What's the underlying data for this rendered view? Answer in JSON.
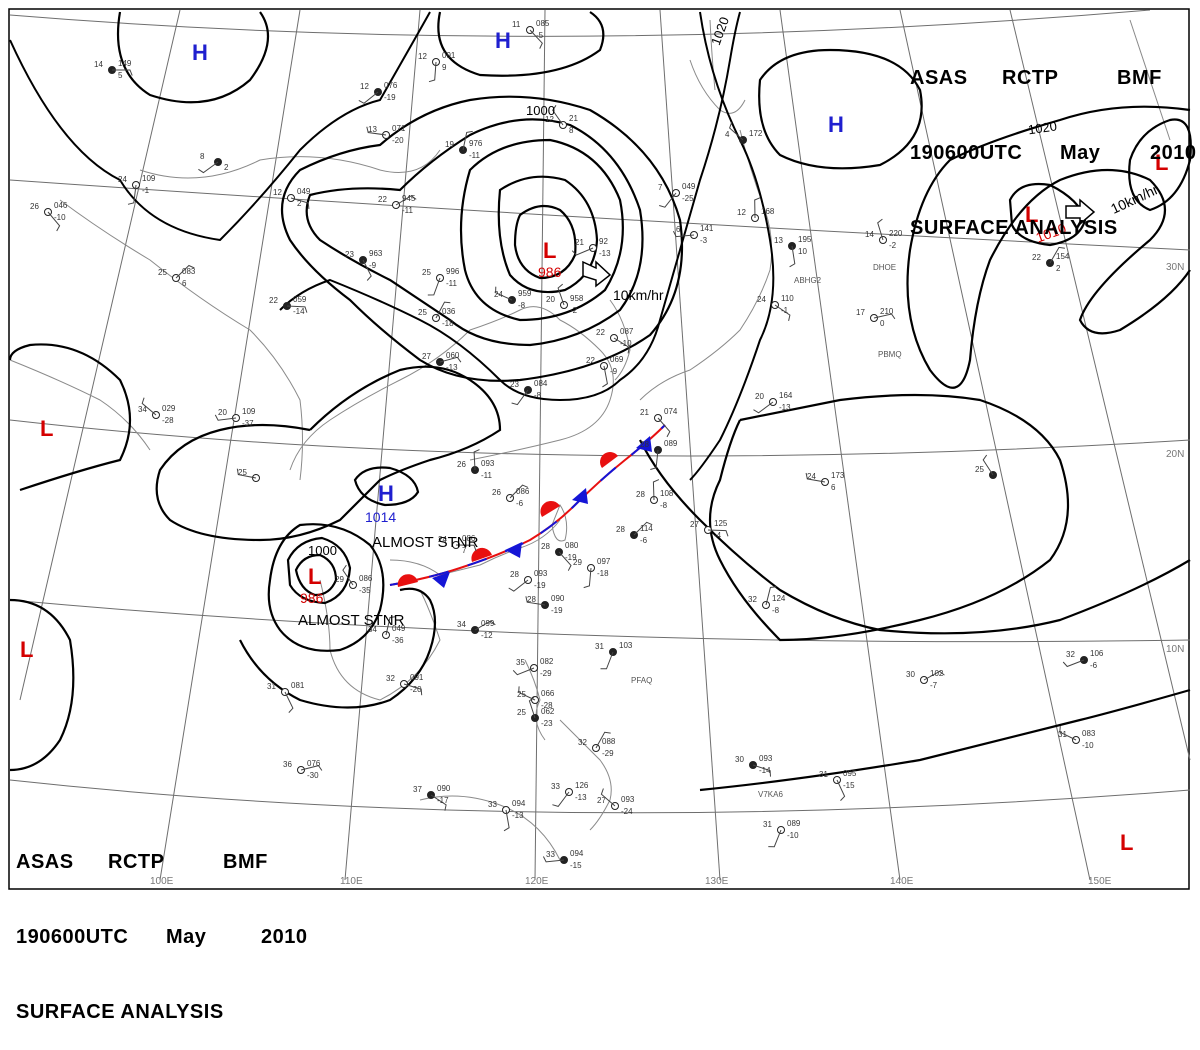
{
  "header": {
    "product": "ASAS",
    "issuer": "RCTP",
    "station": "BMF",
    "valid_time": "190600UTC",
    "month": "May",
    "year": "2010",
    "chart_type": "SURFACE ANALYSIS"
  },
  "pressure_centers": [
    {
      "type": "H",
      "value": ""
    },
    {
      "type": "H",
      "value": ""
    },
    {
      "type": "H",
      "value": ""
    },
    {
      "type": "H",
      "value": "1014"
    },
    {
      "type": "L",
      "value": "986"
    },
    {
      "type": "L",
      "value": "986"
    },
    {
      "type": "L",
      "value": "1010"
    },
    {
      "type": "L",
      "value": ""
    },
    {
      "type": "L",
      "value": ""
    },
    {
      "type": "L",
      "value": ""
    }
  ],
  "isobar_labels": [
    "1000",
    "1000",
    "1020",
    "1020"
  ],
  "motion_labels": [
    "10km/hr",
    "10km/hr"
  ],
  "front_notes": [
    "ALMOST STNR",
    "ALMOST STNR"
  ],
  "station_ids": [
    "ABHG2",
    "DHOE",
    "PBMQ",
    "PFAQ",
    "V7KA6"
  ],
  "lon_labels": [
    "100E",
    "110E",
    "120E",
    "130E",
    "140E",
    "150E"
  ],
  "lat_labels": [
    "30N",
    "20N",
    "10N"
  ],
  "station_plots": [
    {
      "t": "14",
      "p": "149",
      "d": "5"
    },
    {
      "t": "11",
      "p": "085",
      "d": "-5"
    },
    {
      "t": "12",
      "p": "091",
      "d": "9"
    },
    {
      "t": "12",
      "p": "076",
      "d": "-19"
    },
    {
      "t": "13",
      "p": "071",
      "d": "-20"
    },
    {
      "t": "12",
      "p": "21",
      "d": "8"
    },
    {
      "t": "19",
      "p": "976",
      "d": "-11"
    },
    {
      "t": "22",
      "p": "945",
      "d": "-11"
    },
    {
      "t": "12",
      "p": "049",
      "d": "2"
    },
    {
      "t": "23",
      "p": "963",
      "d": "-9"
    },
    {
      "t": "25",
      "p": "996",
      "d": "-11"
    },
    {
      "t": "21",
      "p": "92",
      "d": "-13"
    },
    {
      "t": "24",
      "p": "959",
      "d": "-8"
    },
    {
      "t": "20",
      "p": "958",
      "d": "-2"
    },
    {
      "t": "25",
      "p": "036",
      "d": "-18"
    },
    {
      "t": "27",
      "p": "060",
      "d": "-13"
    },
    {
      "t": "22",
      "p": "087",
      "d": "-10"
    },
    {
      "t": "22",
      "p": "069",
      "d": "-9"
    },
    {
      "t": "23",
      "p": "084",
      "d": "-8"
    },
    {
      "t": "20",
      "p": "109",
      "d": "-37"
    },
    {
      "t": "34",
      "p": "029",
      "d": "-28"
    },
    {
      "t": "26",
      "p": "093",
      "d": "-11"
    },
    {
      "t": "26",
      "p": "086",
      "d": "-6"
    },
    {
      "t": "24",
      "p": "086",
      "d": "7"
    },
    {
      "t": "28",
      "p": "080",
      "d": "-19"
    },
    {
      "t": "29",
      "p": "097",
      "d": "-18"
    },
    {
      "t": "28",
      "p": "093",
      "d": "-19"
    },
    {
      "t": "28",
      "p": "090",
      "d": "-19"
    },
    {
      "t": "29",
      "p": "086",
      "d": "-35"
    },
    {
      "t": "34",
      "p": "049",
      "d": "-36"
    },
    {
      "t": "34",
      "p": "099",
      "d": "-12"
    },
    {
      "t": "32",
      "p": "091",
      "d": "-20"
    },
    {
      "t": "31",
      "p": "081",
      "d": ""
    },
    {
      "t": "31",
      "p": "103",
      "d": ""
    },
    {
      "t": "35",
      "p": "082",
      "d": "-29"
    },
    {
      "t": "25",
      "p": "066",
      "d": "-28"
    },
    {
      "t": "25",
      "p": "062",
      "d": "-23"
    },
    {
      "t": "32",
      "p": "088",
      "d": "-29"
    },
    {
      "t": "36",
      "p": "076",
      "d": "-30"
    },
    {
      "t": "37",
      "p": "090",
      "d": "-17"
    },
    {
      "t": "33",
      "p": "094",
      "d": "-13"
    },
    {
      "t": "33",
      "p": "126",
      "d": "-13"
    },
    {
      "t": "33",
      "p": "094",
      "d": "-15"
    },
    {
      "t": "27",
      "p": "093",
      "d": "-24"
    },
    {
      "t": "28",
      "p": "108",
      "d": "-8"
    },
    {
      "t": "28",
      "p": "114",
      "d": "-6"
    },
    {
      "t": "27",
      "p": "125",
      "d": "-4"
    },
    {
      "t": "21",
      "p": "074",
      "d": ""
    },
    {
      "t": "28",
      "p": "089",
      "d": ""
    },
    {
      "t": "20",
      "p": "164",
      "d": "-13"
    },
    {
      "t": "24",
      "p": "173",
      "d": "6"
    },
    {
      "t": "25",
      "p": "",
      "d": ""
    },
    {
      "t": "32",
      "p": "124",
      "d": "-8"
    },
    {
      "t": "30",
      "p": "102",
      "d": "-7"
    },
    {
      "t": "30",
      "p": "093",
      "d": "-14"
    },
    {
      "t": "31",
      "p": "095",
      "d": "-15"
    },
    {
      "t": "31",
      "p": "089",
      "d": "-10"
    },
    {
      "t": "32",
      "p": "106",
      "d": "-6"
    },
    {
      "t": "31",
      "p": "083",
      "d": "-10"
    },
    {
      "t": "14",
      "p": "220",
      "d": "-2"
    },
    {
      "t": "22",
      "p": "154",
      "d": "2"
    },
    {
      "t": "17",
      "p": "210",
      "d": "0"
    },
    {
      "t": "24",
      "p": "110",
      "d": "-1"
    },
    {
      "t": "13",
      "p": "195",
      "d": "10"
    },
    {
      "t": "7",
      "p": "049",
      "d": "-25"
    },
    {
      "t": "6",
      "p": "141",
      "d": "-3"
    },
    {
      "t": "4",
      "p": "172",
      "d": ""
    },
    {
      "t": "12",
      "p": "168",
      "d": ""
    },
    {
      "t": "25",
      "p": "083",
      "d": "6"
    },
    {
      "t": "22",
      "p": "059",
      "d": "-14"
    },
    {
      "t": "26",
      "p": "046",
      "d": "-10"
    },
    {
      "t": "24",
      "p": "109",
      "d": "-1"
    },
    {
      "t": "8",
      "p": "",
      "d": "2"
    },
    {
      "t": "25",
      "p": "",
      "d": ""
    }
  ],
  "colors": {
    "isobar": "#000000",
    "graticule": "#6e6e6e",
    "coastline": "#8a8a8a",
    "high": "#1f1fcf",
    "low": "#d40000",
    "warm_front": "#e81010",
    "cold_front": "#1515d6",
    "plot_text": "#333333"
  }
}
